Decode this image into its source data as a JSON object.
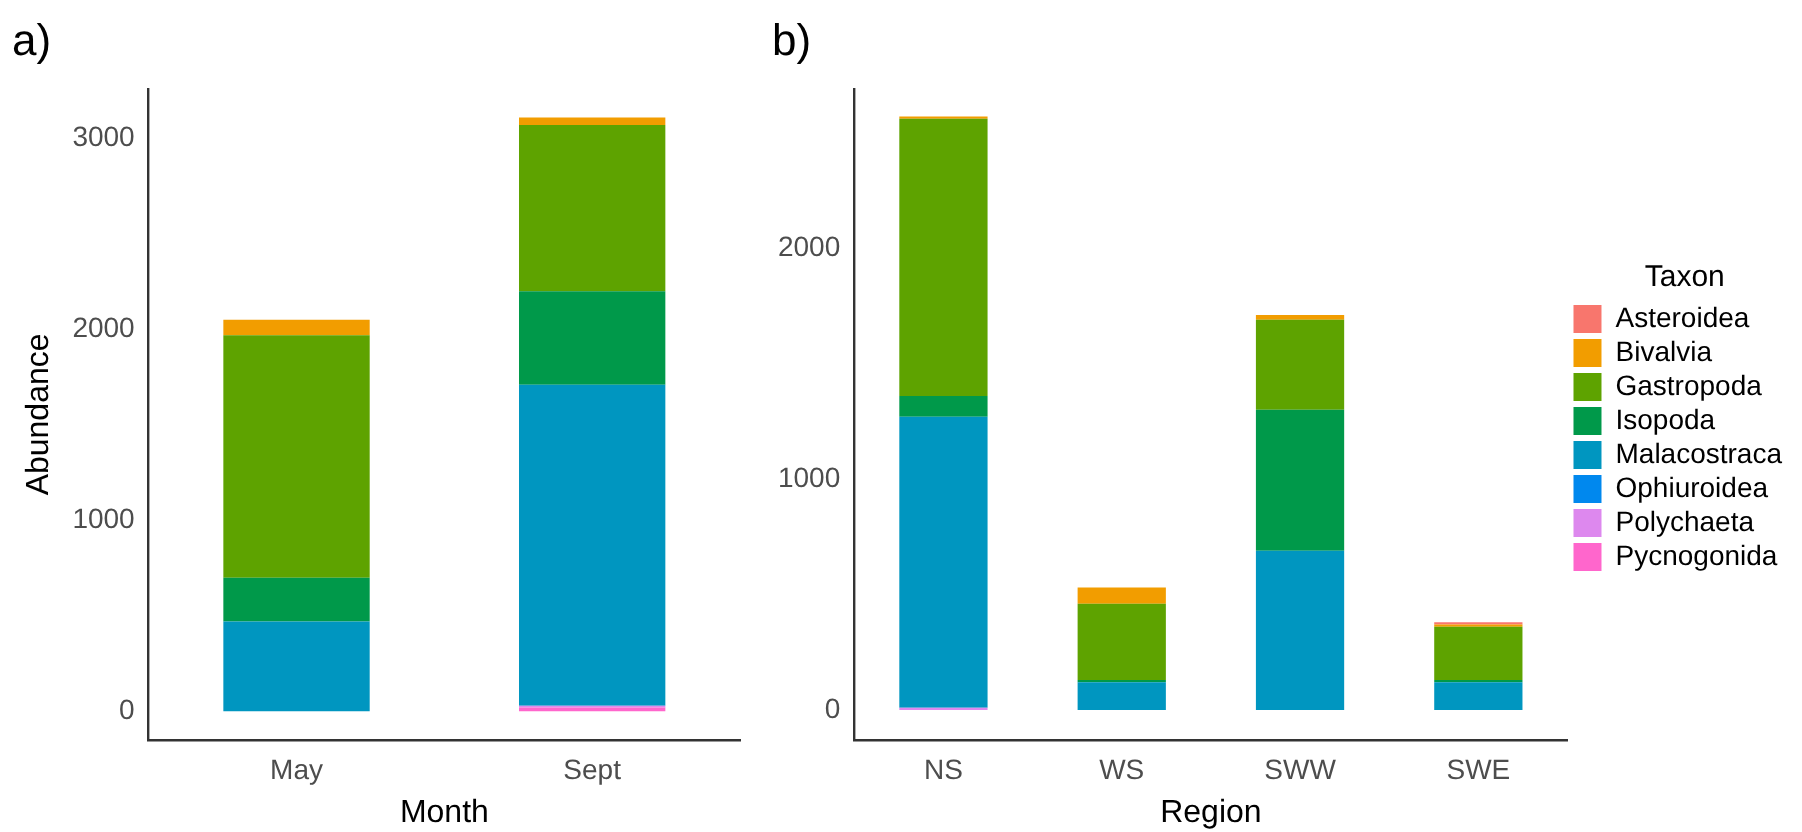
{
  "chart_data": [
    {
      "type": "bar",
      "title": "a)",
      "xlabel": "Month",
      "ylabel": "Abundance",
      "categories": [
        "May",
        "Sept"
      ],
      "stacked": true,
      "ylim": [
        -150,
        3260
      ],
      "yticks": [
        0,
        1000,
        2000,
        3000
      ],
      "grid": false,
      "legend": false,
      "series": [
        {
          "color": "#ff66cc",
          "values": [
            0,
            20
          ]
        },
        {
          "color": "#dd88ee",
          "values": [
            0,
            10
          ]
        },
        {
          "color": "#0088ee",
          "values": [
            0,
            0
          ]
        },
        {
          "color": "#0096c0",
          "values": [
            470,
            1680
          ]
        },
        {
          "color": "#00994a",
          "values": [
            230,
            490
          ]
        },
        {
          "color": "#5ea300",
          "values": [
            1270,
            870
          ]
        },
        {
          "color": "#f29d00",
          "values": [
            80,
            40
          ]
        },
        {
          "color": "#f8766d",
          "values": [
            0,
            0
          ]
        }
      ]
    },
    {
      "type": "bar",
      "title": "b)",
      "xlabel": "Region",
      "legend_title": "Taxon",
      "categories": [
        "NS",
        "WS",
        "SWW",
        "SWE"
      ],
      "stacked": true,
      "ylim": [
        -130,
        2690
      ],
      "yticks": [
        0,
        1000,
        2000
      ],
      "grid": false,
      "legend": "right",
      "series": [
        {
          "name": "Pycnogonida",
          "color": "#ff66cc",
          "values": [
            0,
            0,
            0,
            0
          ]
        },
        {
          "name": "Polychaeta",
          "color": "#dd88ee",
          "values": [
            10,
            0,
            0,
            0
          ]
        },
        {
          "name": "Ophiuroidea",
          "color": "#0088ee",
          "values": [
            0,
            0,
            0,
            0
          ]
        },
        {
          "name": "Malacostraca",
          "color": "#0096c0",
          "values": [
            1260,
            120,
            690,
            120
          ]
        },
        {
          "name": "Isopoda",
          "color": "#00994a",
          "values": [
            90,
            10,
            610,
            10
          ]
        },
        {
          "name": "Gastropoda",
          "color": "#5ea300",
          "values": [
            1200,
            330,
            390,
            230
          ]
        },
        {
          "name": "Bivalvia",
          "color": "#f29d00",
          "values": [
            10,
            70,
            20,
            10
          ]
        },
        {
          "name": "Asteroidea",
          "color": "#f8766d",
          "values": [
            0,
            0,
            0,
            10
          ]
        }
      ]
    }
  ]
}
